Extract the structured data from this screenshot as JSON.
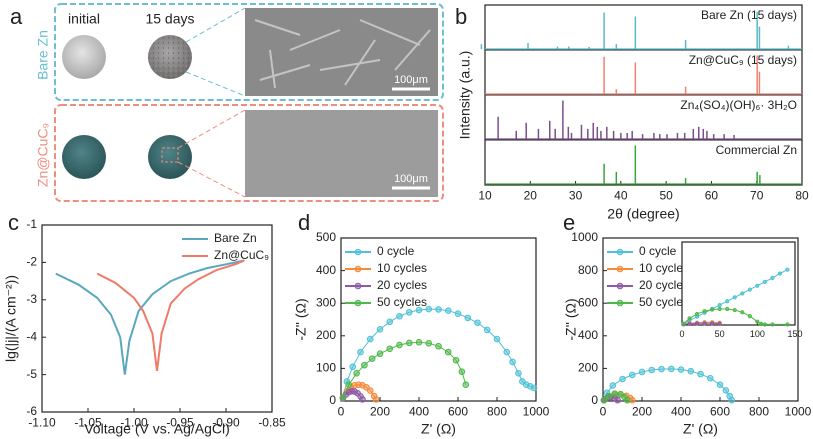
{
  "panel_a": {
    "label": "a",
    "col_headers": [
      "initial",
      "15 days"
    ],
    "rows": [
      {
        "name": "Bare Zn",
        "scale_bar": "100μm"
      },
      {
        "name": "Zn@CuC₉",
        "scale_bar": "100μm"
      }
    ]
  },
  "chart_data": [
    {
      "type": "stem",
      "label": "b",
      "xlabel": "2θ (degree)",
      "ylabel": "Intensity (a.u.)",
      "xlim": [
        10,
        80
      ],
      "xticks": [
        10,
        20,
        30,
        40,
        50,
        60,
        70,
        80
      ],
      "series": [
        {
          "name": "Bare Zn (15 days)",
          "color": "#5bb8c6",
          "x": [
            9.2,
            19.5,
            26,
            28.5,
            33,
            36.3,
            39,
            43.2,
            54.3,
            70.1,
            70.6,
            77
          ],
          "values": [
            12,
            15,
            6,
            6,
            5,
            90,
            12,
            80,
            22,
            92,
            55,
            8
          ]
        },
        {
          "name": "Zn@CuC₉ (15 days)",
          "color": "#f0826f",
          "x": [
            36.3,
            39,
            43.2,
            54.3,
            70.1,
            70.6
          ],
          "values": [
            92,
            12,
            78,
            18,
            95,
            55
          ]
        },
        {
          "name": "Zn₄(SO₄)(OH)₆· 3H₂O",
          "color": "#7b4f8c",
          "x": [
            12.9,
            16.9,
            19.1,
            21.8,
            24.3,
            25.5,
            27.2,
            28.4,
            29.1,
            31.3,
            32.7,
            33.9,
            34.8,
            35.6,
            36.9,
            38.4,
            40.0,
            41.4,
            42.5,
            44.8,
            47.3,
            48.6,
            50.2,
            52.5,
            54.1,
            56.0,
            57.2,
            58.2,
            59.0,
            60.5,
            62.8,
            65.0
          ],
          "values": [
            55,
            20,
            40,
            25,
            45,
            25,
            95,
            30,
            15,
            35,
            25,
            40,
            30,
            20,
            30,
            20,
            15,
            15,
            20,
            12,
            15,
            12,
            12,
            15,
            15,
            25,
            30,
            25,
            20,
            12,
            12,
            10
          ]
        },
        {
          "name": "Commercial Zn",
          "color": "#3aa53a",
          "x": [
            36.3,
            39,
            43.2,
            54.3,
            70.1,
            70.7
          ],
          "values": [
            50,
            30,
            95,
            15,
            30,
            22
          ]
        }
      ]
    },
    {
      "type": "line",
      "label": "c",
      "xlabel": "Voltage (V vs. Ag/AgCl)",
      "ylabel": "lg(|j|/(A cm⁻²))",
      "xlim": [
        -1.1,
        -0.85
      ],
      "xticks": [
        {
          "value": -1.1,
          "label": "-1.10"
        },
        -1.05,
        {
          "value": -1.0,
          "label": "-1.00"
        },
        -0.95,
        {
          "value": -0.9,
          "label": "-0.90"
        },
        -0.85
      ],
      "ylim": [
        -6,
        -1
      ],
      "yticks": [
        -6,
        -5,
        -4,
        -3,
        -2,
        -1
      ],
      "legend": "upper right",
      "series": [
        {
          "name": "Bare Zn",
          "color": "#5aa7be",
          "x": [
            -1.085,
            -1.06,
            -1.04,
            -1.025,
            -1.015,
            -1.01,
            -1.005,
            -0.995,
            -0.98,
            -0.96,
            -0.94,
            -0.92,
            -0.9,
            -0.88
          ],
          "values": [
            -2.3,
            -2.6,
            -2.95,
            -3.4,
            -4.0,
            -5.0,
            -4.1,
            -3.3,
            -2.85,
            -2.5,
            -2.3,
            -2.15,
            -2.05,
            -1.95
          ]
        },
        {
          "name": "Zn@CuC₉",
          "color": "#f07a68",
          "x": [
            -1.04,
            -1.02,
            -1.0,
            -0.99,
            -0.98,
            -0.975,
            -0.97,
            -0.96,
            -0.945,
            -0.93,
            -0.91,
            -0.89,
            -0.88
          ],
          "values": [
            -2.3,
            -2.55,
            -2.95,
            -3.3,
            -3.9,
            -4.9,
            -3.9,
            -3.1,
            -2.7,
            -2.45,
            -2.2,
            -2.05,
            -1.95
          ]
        }
      ]
    },
    {
      "type": "line",
      "markers": true,
      "label": "d",
      "xlabel": "Z' (Ω)",
      "ylabel": "-Z'' (Ω)",
      "xlim": [
        0,
        1000
      ],
      "xticks": [
        0,
        200,
        400,
        600,
        800,
        1000
      ],
      "ylim": [
        0,
        500
      ],
      "yticks": [
        0,
        100,
        200,
        300,
        400,
        500
      ],
      "legend": "upper left",
      "series": [
        {
          "name": "0 cycle",
          "color": "#4fc1d6",
          "x": [
            10,
            30,
            60,
            100,
            150,
            200,
            250,
            300,
            350,
            400,
            450,
            500,
            550,
            600,
            650,
            700,
            750,
            800,
            850,
            880,
            910,
            930,
            950,
            970,
            990
          ],
          "values": [
            10,
            60,
            105,
            150,
            190,
            220,
            243,
            260,
            272,
            279,
            282,
            281,
            277,
            268,
            255,
            240,
            218,
            190,
            150,
            120,
            85,
            60,
            50,
            45,
            40
          ]
        },
        {
          "name": "10 cycles",
          "color": "#f58a3b",
          "x": [
            10,
            30,
            50,
            70,
            90,
            110,
            130,
            150,
            170,
            180
          ],
          "values": [
            10,
            30,
            42,
            48,
            50,
            48,
            42,
            32,
            15,
            5
          ]
        },
        {
          "name": "20 cycles",
          "color": "#8e5aa8",
          "x": [
            10,
            25,
            40,
            55,
            70,
            85,
            100,
            110
          ],
          "values": [
            8,
            20,
            27,
            30,
            29,
            24,
            14,
            5
          ]
        },
        {
          "name": "50 cycles",
          "color": "#4cb848",
          "x": [
            10,
            40,
            80,
            120,
            160,
            200,
            250,
            300,
            350,
            400,
            450,
            500,
            550,
            590,
            620,
            640
          ],
          "values": [
            10,
            50,
            85,
            110,
            130,
            145,
            160,
            172,
            178,
            180,
            177,
            168,
            150,
            125,
            90,
            50
          ]
        }
      ]
    },
    {
      "type": "line",
      "markers": true,
      "label": "e",
      "xlabel": "Z' (Ω)",
      "ylabel": "-Z'' (Ω)",
      "xlim": [
        0,
        1000
      ],
      "xticks": [
        0,
        200,
        400,
        600,
        800,
        1000
      ],
      "ylim": [
        0,
        1000
      ],
      "yticks": [
        0,
        200,
        400,
        600,
        800,
        1000
      ],
      "legend": "upper left",
      "series": [
        {
          "name": "0 cycle",
          "color": "#4fc1d6",
          "x": [
            5,
            20,
            50,
            100,
            150,
            200,
            250,
            300,
            350,
            400,
            450,
            500,
            550,
            600,
            630,
            650,
            660
          ],
          "values": [
            5,
            50,
            95,
            135,
            160,
            178,
            190,
            196,
            197,
            193,
            183,
            165,
            140,
            100,
            65,
            30,
            5
          ]
        },
        {
          "name": "10 cycles",
          "color": "#f58a3b",
          "x": [
            5,
            30,
            60,
            90,
            120,
            140,
            150
          ],
          "values": [
            5,
            25,
            38,
            40,
            32,
            18,
            5
          ]
        },
        {
          "name": "20 cycles",
          "color": "#8e5aa8",
          "x": [
            5,
            20,
            40,
            60,
            75
          ],
          "values": [
            5,
            18,
            25,
            18,
            5
          ]
        },
        {
          "name": "50 cycles",
          "color": "#4cb848",
          "x": [
            5,
            30,
            60,
            90,
            110,
            125
          ],
          "values": [
            5,
            30,
            45,
            42,
            25,
            5
          ]
        }
      ]
    },
    {
      "type": "line",
      "markers": true,
      "xlim": [
        0,
        150
      ],
      "xticks": [
        0,
        50,
        100,
        150
      ],
      "ylim": [
        0,
        150
      ],
      "series": [
        {
          "color": "#4fc1d6",
          "x": [
            2,
            10,
            20,
            30,
            40,
            50,
            60,
            70,
            80,
            90,
            100,
            110,
            120,
            130,
            140
          ],
          "values": [
            2,
            8,
            15,
            22,
            29,
            36,
            43,
            50,
            57,
            64,
            71,
            78,
            85,
            93,
            100
          ]
        },
        {
          "color": "#f58a3b",
          "x": [
            2,
            10,
            20,
            30,
            40,
            50
          ],
          "values": [
            1,
            3,
            4,
            5,
            5,
            4
          ]
        },
        {
          "color": "#8e5aa8",
          "x": [
            2,
            10,
            20,
            30,
            40,
            50
          ],
          "values": [
            1,
            2,
            3,
            3,
            3,
            2
          ]
        },
        {
          "color": "#4cb848",
          "x": [
            2,
            10,
            20,
            30,
            40,
            50,
            60,
            70,
            80,
            90,
            100,
            105,
            110,
            120,
            140
          ],
          "values": [
            2,
            12,
            20,
            25,
            28,
            29,
            29,
            27,
            23,
            16,
            6,
            2,
            1,
            1,
            1
          ]
        }
      ]
    }
  ]
}
